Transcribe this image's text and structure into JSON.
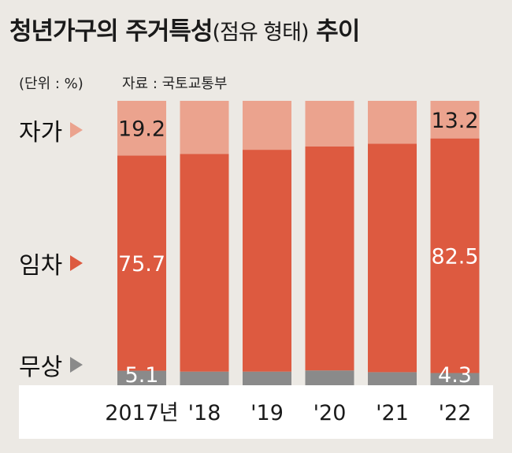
{
  "title_main": "청년가구의 주거특성",
  "title_paren": "(점유 형태)",
  "title_end": "추이",
  "unit": "(단위 : %)",
  "source": "자료 : 국토교통부",
  "legend": {
    "own": "자가",
    "rent": "임차",
    "free": "무상"
  },
  "colors": {
    "own": "#eba38e",
    "rent": "#dd5a40",
    "free": "#8a8a8a"
  },
  "chart_data": {
    "type": "bar",
    "stacked": true,
    "categories": [
      "2017년",
      "'18",
      "'19",
      "'20",
      "'21",
      "'22"
    ],
    "series": [
      {
        "name": "무상",
        "values": [
          5.1,
          4.8,
          4.8,
          5.2,
          4.6,
          4.3
        ]
      },
      {
        "name": "임차",
        "values": [
          75.7,
          76.5,
          78.0,
          78.8,
          80.3,
          82.5
        ]
      },
      {
        "name": "자가",
        "values": [
          19.2,
          18.7,
          17.2,
          16.0,
          15.1,
          13.2
        ]
      }
    ],
    "labels": [
      {
        "index": 0,
        "series": "자가",
        "text": "19.2"
      },
      {
        "index": 0,
        "series": "임차",
        "text": "75.7"
      },
      {
        "index": 0,
        "series": "무상",
        "text": "5.1"
      },
      {
        "index": 5,
        "series": "자가",
        "text": "13.2"
      },
      {
        "index": 5,
        "series": "임차",
        "text": "82.5"
      },
      {
        "index": 5,
        "series": "무상",
        "text": "4.3"
      }
    ],
    "ylim": [
      0,
      100
    ],
    "grid": false
  }
}
